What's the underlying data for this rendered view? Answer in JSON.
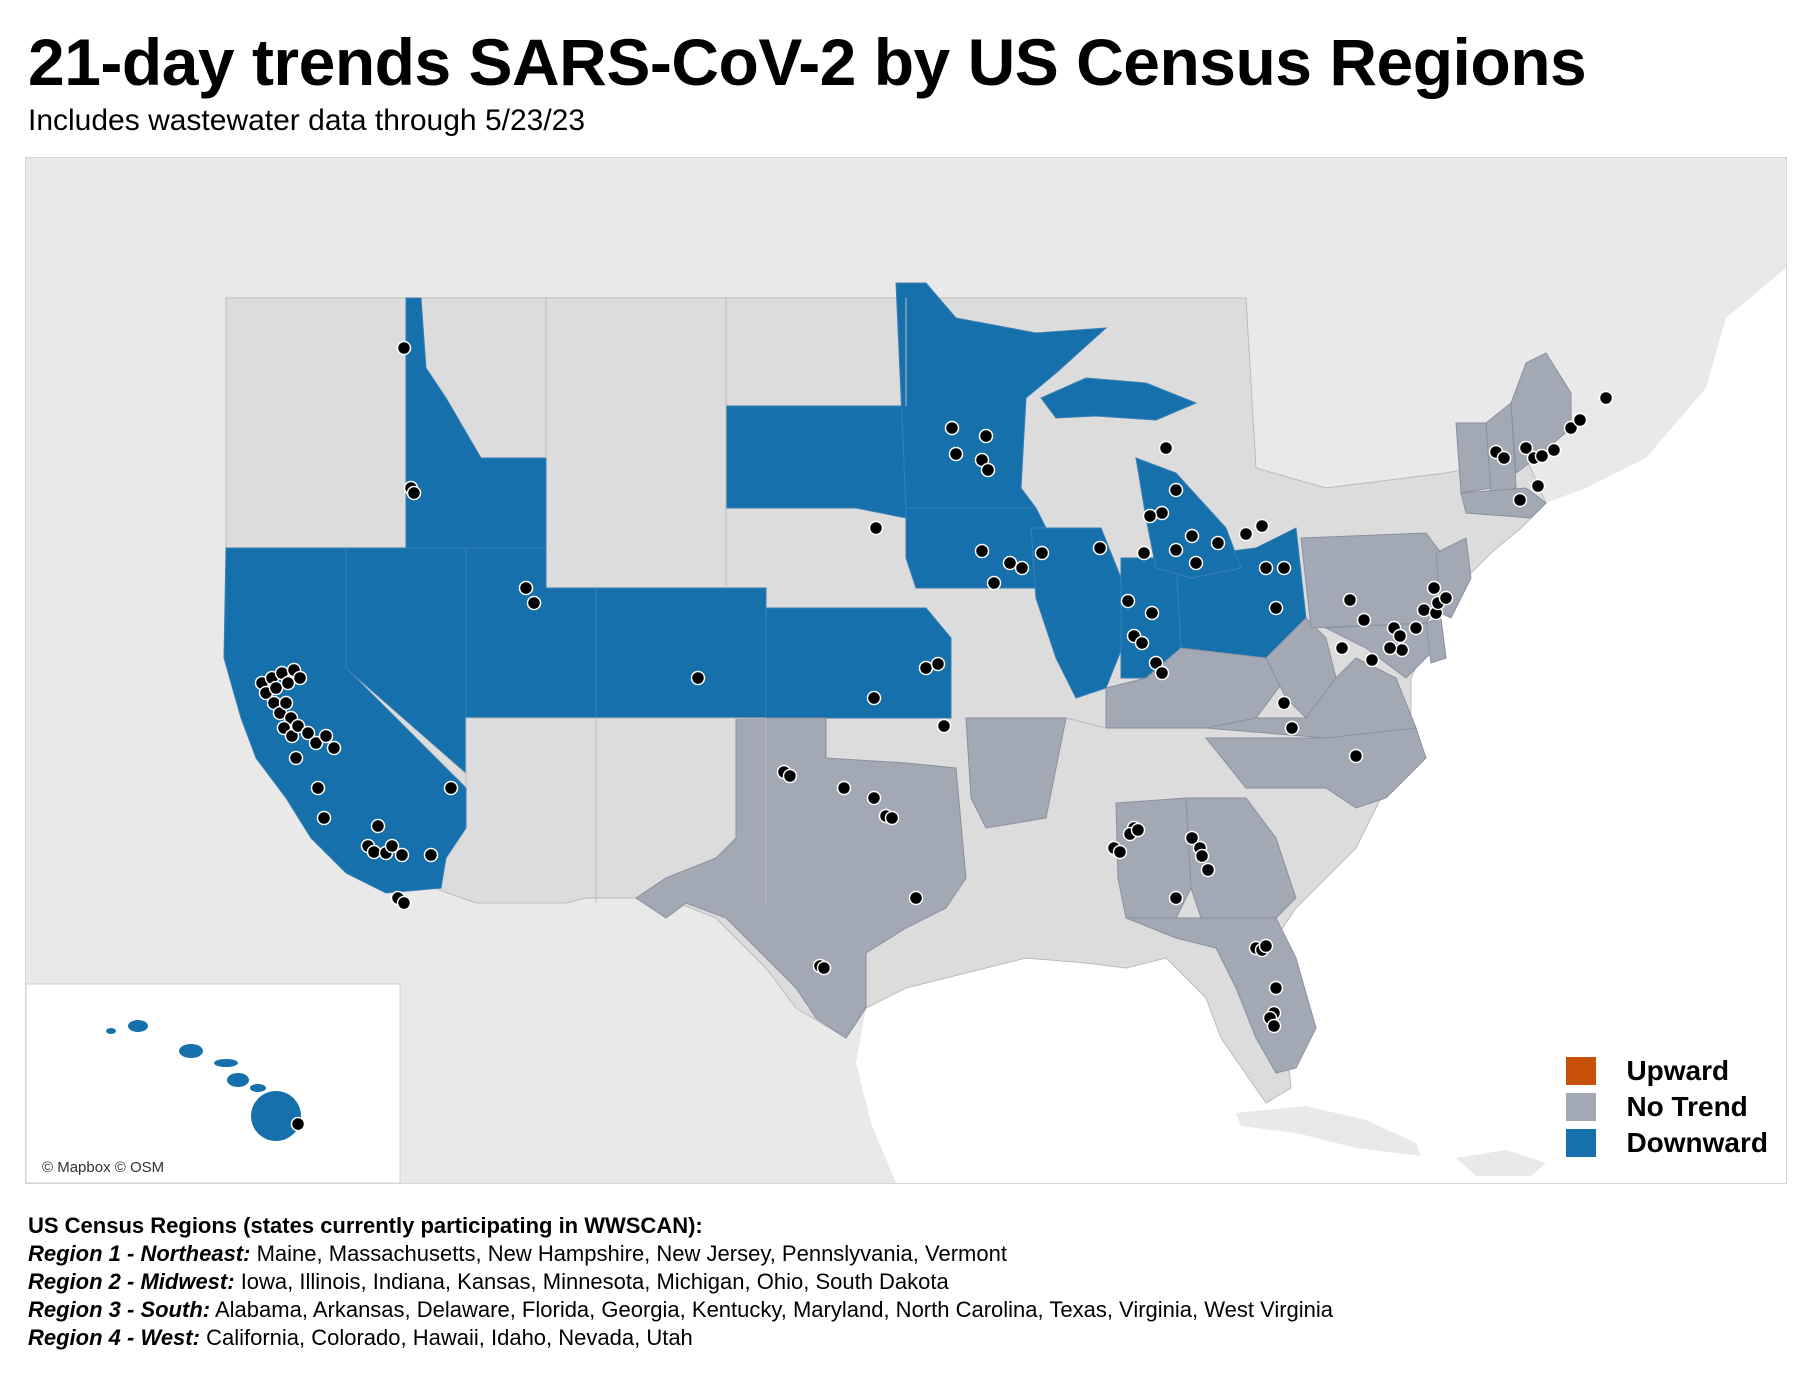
{
  "header": {
    "title": "21-day trends SARS-CoV-2 by US Census Regions",
    "subtitle": "Includes wastewater data through 5/23/23"
  },
  "map": {
    "attribution": "© Mapbox © OSM",
    "colors": {
      "Upward": "#c8510a",
      "No Trend": "#a2a8b4",
      "Downward": "#1670ac",
      "non_participating": "#dcdcdc",
      "ocean": "#ffffff",
      "land": "#e9e9e9",
      "site_marker": "#000000"
    },
    "legend": [
      {
        "label": "Upward",
        "color": "#c8510a"
      },
      {
        "label": "No Trend",
        "color": "#a2a8b4"
      },
      {
        "label": "Downward",
        "color": "#1670ac"
      }
    ],
    "state_trends": {
      "Downward": [
        "California",
        "Nevada",
        "Idaho",
        "Utah",
        "Colorado",
        "Kansas",
        "South Dakota",
        "Minnesota",
        "Iowa",
        "Illinois",
        "Indiana",
        "Michigan",
        "Ohio",
        "Hawaii"
      ],
      "No Trend": [
        "Texas",
        "Arkansas",
        "Alabama",
        "Georgia",
        "Florida",
        "Kentucky",
        "West Virginia",
        "Virginia",
        "North Carolina",
        "Maryland",
        "Delaware",
        "Pennsylvania",
        "New Jersey",
        "Vermont",
        "New Hampshire",
        "Maine",
        "Massachusetts"
      ],
      "Upward": []
    }
  },
  "notes": {
    "heading": "US Census Regions (states currently participating in WWSCAN):",
    "regions": [
      {
        "name": "Region 1 - Northeast:",
        "states": "Maine, Massachusetts, New Hampshire, New Jersey, Pennslyvania, Vermont"
      },
      {
        "name": "Region 2 - Midwest:",
        "states": "Iowa, Illinois, Indiana, Kansas, Minnesota, Michigan, Ohio, South Dakota"
      },
      {
        "name": "Region 3 - South:",
        "states": "Alabama, Arkansas, Delaware, Florida, Georgia, Kentucky, Maryland, North Carolina, Texas, Virginia, West Virginia"
      },
      {
        "name": "Region 4 - West:",
        "states": "California, Colorado, Hawaii, Idaho, Nevada, Utah"
      }
    ]
  }
}
